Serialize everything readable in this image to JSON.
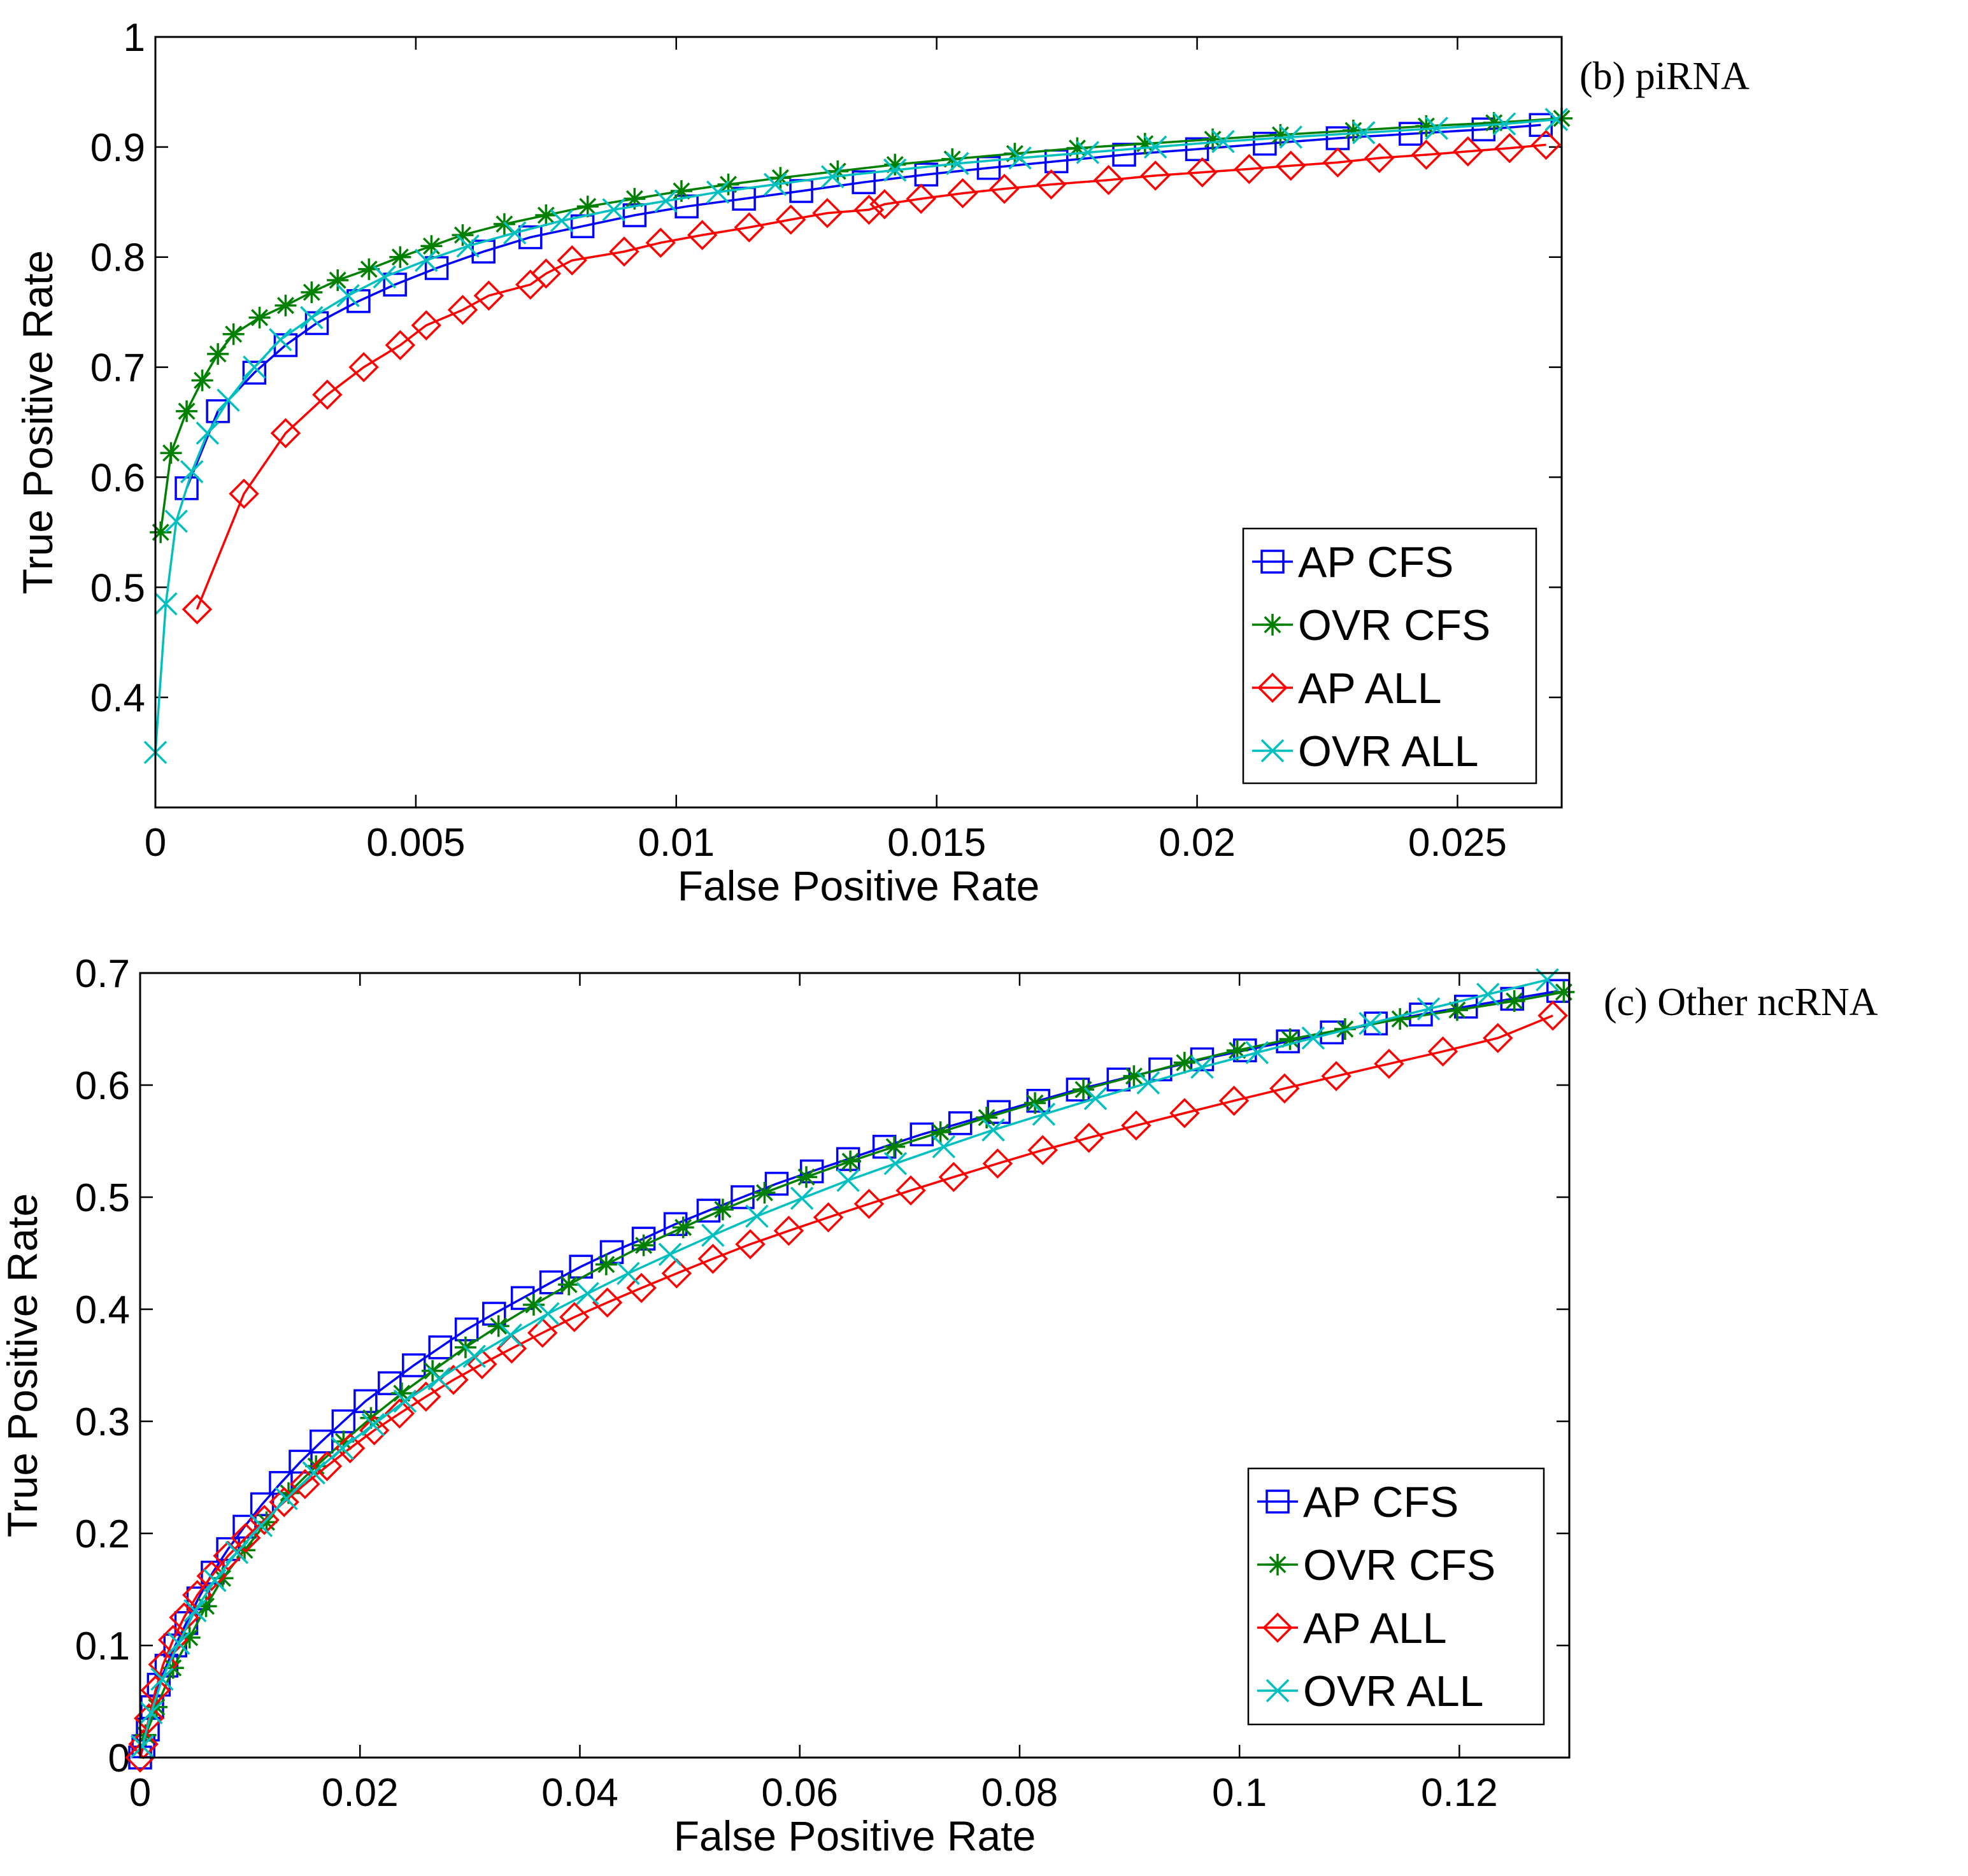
{
  "colors": {
    "AP CFS": "#0000ff",
    "OVR CFS": "#008000",
    "AP ALL": "#ff0000",
    "OVR ALL": "#00bfbf",
    "axis": "#000000",
    "background": "#ffffff"
  },
  "chart_data": [
    {
      "type": "line",
      "title": "(b) piRNA",
      "xlabel": "False Positive Rate",
      "ylabel": "True Positive Rate",
      "xlim": [
        0,
        0.027
      ],
      "ylim": [
        0.3,
        1
      ],
      "xticks": [
        0,
        0.005,
        0.01,
        0.015,
        0.02,
        0.025
      ],
      "xtick_labels": [
        "0",
        "0.005",
        "0.01",
        "0.015",
        "0.02",
        "0.025"
      ],
      "yticks": [
        0.4,
        0.5,
        0.6,
        0.7,
        0.8,
        0.9,
        1
      ],
      "ytick_labels": [
        "0.4",
        "0.5",
        "0.6",
        "0.7",
        "0.8",
        "0.9",
        "1"
      ],
      "grid": false,
      "legend_position": "lower-right",
      "series": [
        {
          "name": "AP CFS",
          "marker": "square",
          "x": [
            0.0006,
            0.0012,
            0.0019,
            0.0025,
            0.0031,
            0.0039,
            0.0046,
            0.0054,
            0.0063,
            0.0072,
            0.0082,
            0.0092,
            0.0102,
            0.0113,
            0.0124,
            0.0136,
            0.0148,
            0.016,
            0.0173,
            0.0186,
            0.02,
            0.0213,
            0.0227,
            0.0241,
            0.0255,
            0.0266
          ],
          "y": [
            0.59,
            0.66,
            0.695,
            0.72,
            0.74,
            0.76,
            0.775,
            0.79,
            0.805,
            0.818,
            0.828,
            0.838,
            0.846,
            0.853,
            0.86,
            0.868,
            0.875,
            0.881,
            0.887,
            0.893,
            0.898,
            0.903,
            0.908,
            0.912,
            0.916,
            0.92
          ]
        },
        {
          "name": "OVR CFS",
          "marker": "star",
          "x": [
            0.0001,
            0.0003,
            0.0006,
            0.0009,
            0.0012,
            0.0015,
            0.002,
            0.0025,
            0.003,
            0.0035,
            0.0041,
            0.0047,
            0.0053,
            0.0059,
            0.0067,
            0.0075,
            0.0083,
            0.0092,
            0.0101,
            0.011,
            0.012,
            0.0131,
            0.0142,
            0.0153,
            0.0165,
            0.0177,
            0.019,
            0.0203,
            0.0216,
            0.023,
            0.0244,
            0.0257,
            0.027
          ],
          "y": [
            0.55,
            0.622,
            0.66,
            0.688,
            0.712,
            0.73,
            0.745,
            0.756,
            0.768,
            0.779,
            0.789,
            0.8,
            0.81,
            0.82,
            0.83,
            0.838,
            0.846,
            0.853,
            0.86,
            0.866,
            0.872,
            0.878,
            0.884,
            0.889,
            0.894,
            0.899,
            0.903,
            0.907,
            0.911,
            0.915,
            0.919,
            0.922,
            0.926
          ]
        },
        {
          "name": "AP ALL",
          "marker": "diamond",
          "x": [
            0.0008,
            0.0017,
            0.0025,
            0.0033,
            0.004,
            0.0047,
            0.0052,
            0.0059,
            0.0064,
            0.0072,
            0.0075,
            0.008,
            0.009,
            0.0097,
            0.0105,
            0.0114,
            0.0122,
            0.0129,
            0.0137,
            0.014,
            0.0147,
            0.0155,
            0.0163,
            0.0172,
            0.0183,
            0.0192,
            0.0201,
            0.021,
            0.0218,
            0.0227,
            0.0235,
            0.0244,
            0.0252,
            0.026,
            0.0267
          ],
          "y": [
            0.48,
            0.585,
            0.64,
            0.675,
            0.7,
            0.72,
            0.738,
            0.752,
            0.765,
            0.775,
            0.785,
            0.797,
            0.805,
            0.813,
            0.82,
            0.827,
            0.834,
            0.84,
            0.843,
            0.848,
            0.853,
            0.858,
            0.862,
            0.866,
            0.87,
            0.874,
            0.877,
            0.88,
            0.883,
            0.886,
            0.89,
            0.893,
            0.896,
            0.899,
            0.902
          ]
        },
        {
          "name": "OVR ALL",
          "marker": "x",
          "x": [
            0,
            0.0002,
            0.0004,
            0.0007,
            0.001,
            0.0014,
            0.0019,
            0.0024,
            0.003,
            0.0037,
            0.0044,
            0.0052,
            0.006,
            0.0069,
            0.0078,
            0.0088,
            0.0098,
            0.0108,
            0.0119,
            0.013,
            0.0142,
            0.0154,
            0.0166,
            0.0179,
            0.0192,
            0.0205,
            0.0218,
            0.0232,
            0.0246,
            0.0259,
            0.0269
          ],
          "y": [
            0.35,
            0.485,
            0.56,
            0.605,
            0.64,
            0.67,
            0.7,
            0.725,
            0.745,
            0.765,
            0.782,
            0.797,
            0.81,
            0.822,
            0.833,
            0.843,
            0.851,
            0.859,
            0.866,
            0.873,
            0.879,
            0.885,
            0.89,
            0.895,
            0.9,
            0.905,
            0.909,
            0.913,
            0.917,
            0.921,
            0.925
          ]
        }
      ]
    },
    {
      "type": "line",
      "title": "(c) Other ncRNA",
      "xlabel": "False Positive Rate",
      "ylabel": "True Positive Rate",
      "xlim": [
        0,
        0.13
      ],
      "ylim": [
        0,
        0.7
      ],
      "xticks": [
        0,
        0.02,
        0.04,
        0.06,
        0.08,
        0.1,
        0.12
      ],
      "xtick_labels": [
        "0",
        "0.02",
        "0.04",
        "0.06",
        "0.08",
        "0.1",
        "0.12"
      ],
      "yticks": [
        0,
        0.1,
        0.2,
        0.3,
        0.4,
        0.5,
        0.6,
        0.7
      ],
      "ytick_labels": [
        "0",
        "0.1",
        "0.2",
        "0.3",
        "0.4",
        "0.5",
        "0.6",
        "0.7"
      ],
      "grid": false,
      "legend_position": "lower-right",
      "series": [
        {
          "name": "AP CFS",
          "marker": "square",
          "x": [
            0,
            0.0003,
            0.0007,
            0.0011,
            0.0017,
            0.0024,
            0.0032,
            0.0042,
            0.0053,
            0.0066,
            0.008,
            0.0095,
            0.0111,
            0.0128,
            0.0146,
            0.0165,
            0.0185,
            0.0205,
            0.0227,
            0.0249,
            0.0273,
            0.0297,
            0.0322,
            0.0348,
            0.0374,
            0.0401,
            0.0429,
            0.0458,
            0.0487,
            0.0517,
            0.0548,
            0.0579,
            0.0611,
            0.0644,
            0.0677,
            0.0711,
            0.0746,
            0.0781,
            0.0817,
            0.0853,
            0.089,
            0.0928,
            0.0966,
            0.1005,
            0.1044,
            0.1084,
            0.1124,
            0.1165,
            0.1206,
            0.1248,
            0.129
          ],
          "y": [
            0,
            0.01,
            0.025,
            0.045,
            0.065,
            0.082,
            0.1,
            0.12,
            0.142,
            0.165,
            0.186,
            0.206,
            0.226,
            0.245,
            0.264,
            0.282,
            0.3,
            0.318,
            0.334,
            0.35,
            0.366,
            0.382,
            0.396,
            0.41,
            0.424,
            0.438,
            0.451,
            0.463,
            0.476,
            0.488,
            0.5,
            0.512,
            0.523,
            0.534,
            0.545,
            0.556,
            0.566,
            0.576,
            0.586,
            0.596,
            0.605,
            0.614,
            0.623,
            0.631,
            0.639,
            0.647,
            0.655,
            0.663,
            0.67,
            0.677,
            0.684
          ]
        },
        {
          "name": "OVR CFS",
          "marker": "star",
          "x": [
            0.0005,
            0.0015,
            0.003,
            0.0045,
            0.006,
            0.0075,
            0.0095,
            0.0115,
            0.0135,
            0.016,
            0.0185,
            0.021,
            0.0238,
            0.0266,
            0.0296,
            0.0326,
            0.0358,
            0.039,
            0.0424,
            0.0458,
            0.0494,
            0.053,
            0.0568,
            0.0606,
            0.0646,
            0.0686,
            0.0728,
            0.077,
            0.0814,
            0.0858,
            0.0904,
            0.095,
            0.0998,
            0.1046,
            0.1096,
            0.1146,
            0.1198,
            0.125,
            0.1295
          ],
          "y": [
            0.02,
            0.045,
            0.08,
            0.107,
            0.135,
            0.16,
            0.185,
            0.21,
            0.236,
            0.26,
            0.282,
            0.303,
            0.325,
            0.345,
            0.366,
            0.385,
            0.404,
            0.422,
            0.44,
            0.457,
            0.473,
            0.489,
            0.504,
            0.518,
            0.532,
            0.545,
            0.558,
            0.571,
            0.584,
            0.596,
            0.608,
            0.62,
            0.631,
            0.641,
            0.65,
            0.659,
            0.667,
            0.675,
            0.683
          ]
        },
        {
          "name": "AP ALL",
          "marker": "diamond",
          "x": [
            0,
            0.0003,
            0.0008,
            0.0014,
            0.0021,
            0.003,
            0.004,
            0.0052,
            0.0065,
            0.008,
            0.0096,
            0.0113,
            0.0131,
            0.015,
            0.017,
            0.0191,
            0.0213,
            0.0236,
            0.026,
            0.0285,
            0.0311,
            0.0338,
            0.0366,
            0.0395,
            0.0425,
            0.0456,
            0.0488,
            0.0521,
            0.0555,
            0.059,
            0.0626,
            0.0663,
            0.0701,
            0.074,
            0.078,
            0.0821,
            0.0863,
            0.0906,
            0.095,
            0.0995,
            0.1041,
            0.1088,
            0.1136,
            0.1185,
            0.1235,
            0.1285
          ],
          "y": [
            0,
            0.012,
            0.035,
            0.06,
            0.083,
            0.105,
            0.125,
            0.145,
            0.162,
            0.18,
            0.196,
            0.212,
            0.228,
            0.244,
            0.26,
            0.276,
            0.292,
            0.307,
            0.322,
            0.337,
            0.351,
            0.365,
            0.379,
            0.393,
            0.406,
            0.419,
            0.432,
            0.445,
            0.458,
            0.47,
            0.482,
            0.494,
            0.506,
            0.518,
            0.53,
            0.542,
            0.553,
            0.564,
            0.575,
            0.586,
            0.597,
            0.608,
            0.619,
            0.63,
            0.642,
            0.662
          ]
        },
        {
          "name": "OVR ALL",
          "marker": "x",
          "x": [
            0.0002,
            0.001,
            0.002,
            0.0035,
            0.005,
            0.0068,
            0.0088,
            0.011,
            0.0133,
            0.0158,
            0.0184,
            0.0212,
            0.0241,
            0.0272,
            0.0304,
            0.0337,
            0.0371,
            0.0407,
            0.0444,
            0.0482,
            0.0521,
            0.0561,
            0.0602,
            0.0644,
            0.0687,
            0.0731,
            0.0776,
            0.0822,
            0.0869,
            0.0917,
            0.0966,
            0.1016,
            0.1067,
            0.1119,
            0.1172,
            0.1226,
            0.128
          ],
          "y": [
            0.01,
            0.04,
            0.07,
            0.102,
            0.131,
            0.158,
            0.183,
            0.207,
            0.231,
            0.254,
            0.276,
            0.297,
            0.318,
            0.338,
            0.358,
            0.377,
            0.396,
            0.414,
            0.432,
            0.449,
            0.466,
            0.483,
            0.499,
            0.515,
            0.53,
            0.545,
            0.56,
            0.574,
            0.588,
            0.602,
            0.616,
            0.629,
            0.642,
            0.655,
            0.668,
            0.681,
            0.694
          ]
        }
      ]
    }
  ]
}
